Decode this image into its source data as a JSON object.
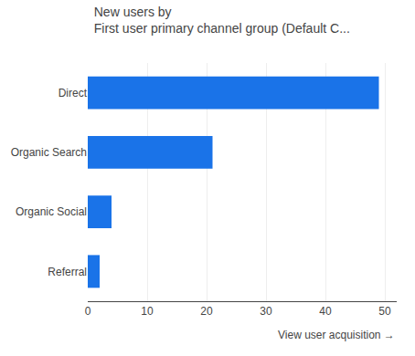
{
  "chart_data": {
    "type": "bar",
    "orientation": "horizontal",
    "title": "New users by",
    "subtitle": "First user primary channel group (Default C...",
    "categories": [
      "Direct",
      "Organic Search",
      "Organic Social",
      "Referral"
    ],
    "values": [
      49,
      21,
      4,
      2
    ],
    "color": "#1a73e8",
    "xlim": [
      0,
      52
    ],
    "xticks": [
      0,
      10,
      20,
      30,
      40,
      50
    ],
    "grid": true,
    "annotations": [
      "View user acquisition →"
    ]
  }
}
